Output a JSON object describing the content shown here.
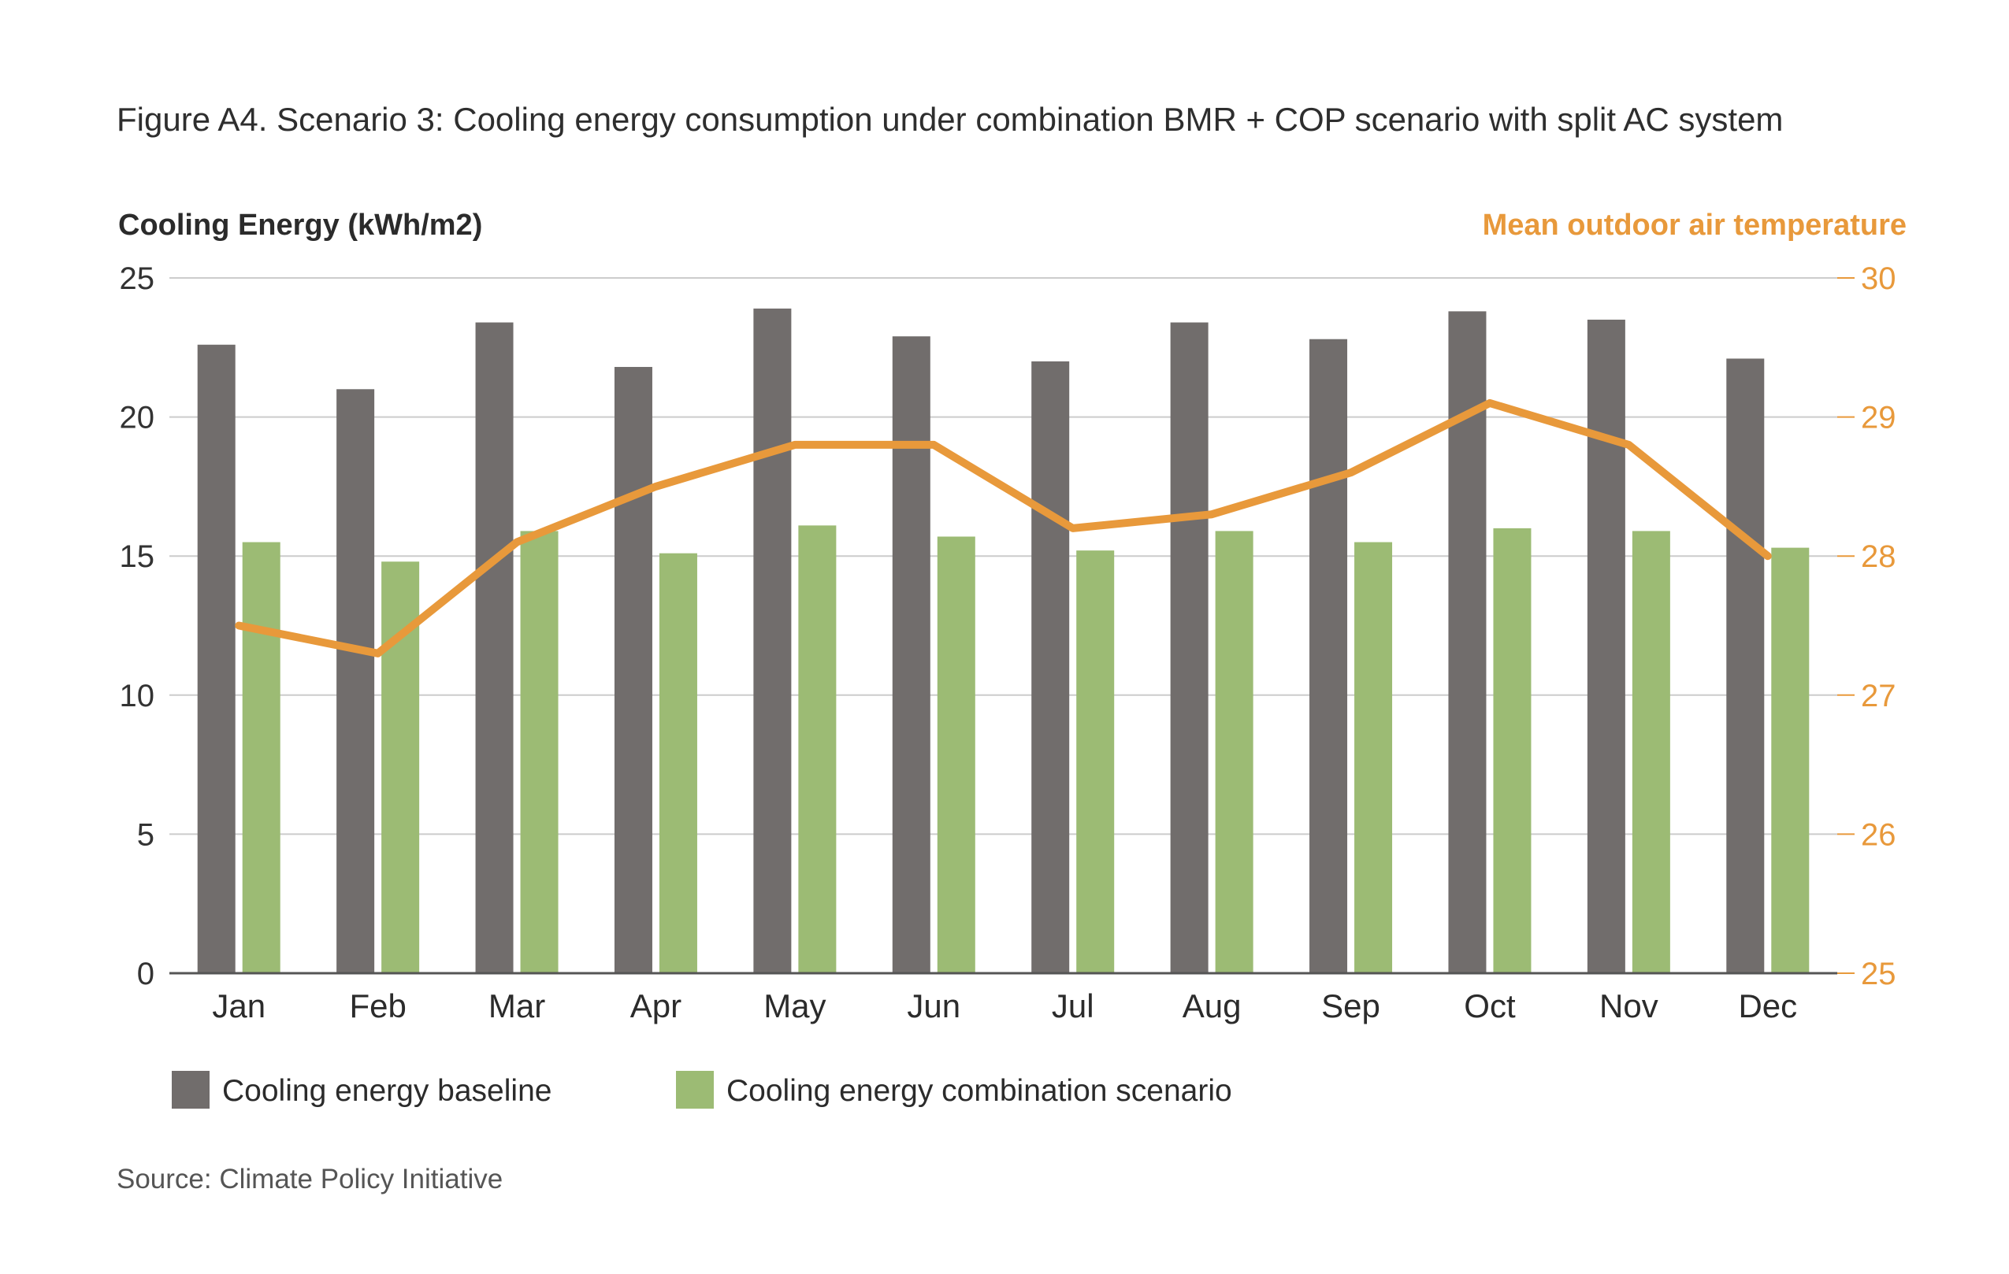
{
  "title": "Figure A4. Scenario 3: Cooling energy consumption under combination BMR + COP scenario with split AC system",
  "source": "Source: Climate Policy Initiative",
  "colors": {
    "baseline": "#716d6c",
    "combination": "#9cbb74",
    "temperature": "#e8993b",
    "grid": "#cccccc",
    "axis": "#555555"
  },
  "chart_data": {
    "type": "bar",
    "categories": [
      "Jan",
      "Feb",
      "Mar",
      "Apr",
      "May",
      "Jun",
      "Jul",
      "Aug",
      "Sep",
      "Oct",
      "Nov",
      "Dec"
    ],
    "ylabel": "Cooling Energy (kWh/m2)",
    "ylabel_right": "Mean outdoor air temperature",
    "ylim": [
      0,
      25
    ],
    "yticks": [
      0,
      5,
      10,
      15,
      20,
      25
    ],
    "ylim_right": [
      25,
      30
    ],
    "yticks_right": [
      25,
      26,
      27,
      28,
      29,
      30
    ],
    "grid": true,
    "legend": "bottom-left",
    "series": [
      {
        "name": "Cooling energy baseline",
        "type": "bar",
        "axis": "left",
        "values": [
          22.6,
          21.0,
          23.4,
          21.8,
          23.9,
          22.9,
          22.0,
          23.4,
          22.8,
          23.8,
          23.5,
          22.1
        ]
      },
      {
        "name": "Cooling energy combination scenario",
        "type": "bar",
        "axis": "left",
        "values": [
          15.5,
          14.8,
          15.9,
          15.1,
          16.1,
          15.7,
          15.2,
          15.9,
          15.5,
          16.0,
          15.9,
          15.3
        ]
      },
      {
        "type": "line",
        "axis": "right",
        "values": [
          27.5,
          27.3,
          28.1,
          28.5,
          28.8,
          28.8,
          28.2,
          28.3,
          28.6,
          29.1,
          28.8,
          28.0
        ]
      }
    ]
  }
}
